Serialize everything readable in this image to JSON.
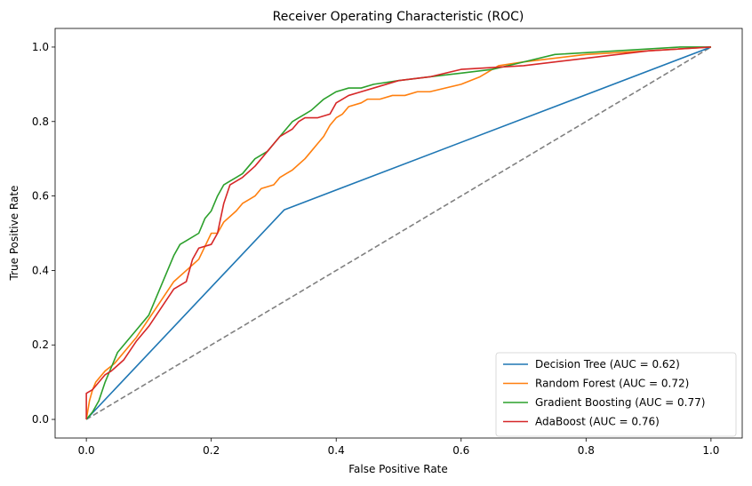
{
  "chart_data": {
    "type": "line",
    "title": "Receiver Operating Characteristic (ROC)",
    "xlabel": "False Positive Rate",
    "ylabel": "True Positive Rate",
    "xlim": [
      -0.05,
      1.05
    ],
    "ylim": [
      -0.05,
      1.05
    ],
    "xticks": [
      0.0,
      0.2,
      0.4,
      0.6,
      0.8,
      1.0
    ],
    "yticks": [
      0.0,
      0.2,
      0.4,
      0.6,
      0.8,
      1.0
    ],
    "xtick_labels": [
      "0.0",
      "0.2",
      "0.4",
      "0.6",
      "0.8",
      "1.0"
    ],
    "ytick_labels": [
      "0.0",
      "0.2",
      "0.4",
      "0.6",
      "0.8",
      "1.0"
    ],
    "grid": false,
    "legend_position": "lower-right",
    "reference_line": {
      "x": [
        0,
        1
      ],
      "y": [
        0,
        1
      ],
      "color": "#808080",
      "style": "dashed"
    },
    "series": [
      {
        "name": "Decision Tree (AUC = 0.62)",
        "color": "#1f77b4",
        "x": [
          0.0,
          0.317,
          1.0
        ],
        "y": [
          0.0,
          0.563,
          1.0
        ]
      },
      {
        "name": "Random Forest (AUC = 0.72)",
        "color": "#ff7f0e",
        "x": [
          0.0,
          0.005,
          0.01,
          0.015,
          0.02,
          0.03,
          0.045,
          0.06,
          0.08,
          0.1,
          0.12,
          0.14,
          0.16,
          0.18,
          0.2,
          0.21,
          0.22,
          0.24,
          0.25,
          0.26,
          0.27,
          0.28,
          0.3,
          0.31,
          0.32,
          0.33,
          0.35,
          0.36,
          0.37,
          0.38,
          0.39,
          0.4,
          0.41,
          0.42,
          0.44,
          0.45,
          0.47,
          0.49,
          0.51,
          0.53,
          0.55,
          0.6,
          0.63,
          0.64,
          0.65,
          0.66,
          0.7,
          0.8,
          0.9,
          1.0
        ],
        "y": [
          0.0,
          0.05,
          0.08,
          0.1,
          0.11,
          0.13,
          0.15,
          0.18,
          0.22,
          0.27,
          0.32,
          0.37,
          0.4,
          0.43,
          0.5,
          0.5,
          0.53,
          0.56,
          0.58,
          0.59,
          0.6,
          0.62,
          0.63,
          0.65,
          0.66,
          0.67,
          0.7,
          0.72,
          0.74,
          0.76,
          0.79,
          0.81,
          0.82,
          0.84,
          0.85,
          0.86,
          0.86,
          0.87,
          0.87,
          0.88,
          0.88,
          0.9,
          0.92,
          0.93,
          0.94,
          0.95,
          0.96,
          0.98,
          0.99,
          1.0
        ]
      },
      {
        "name": "Gradient Boosting (AUC = 0.77)",
        "color": "#2ca02c",
        "x": [
          0.0,
          0.01,
          0.02,
          0.03,
          0.04,
          0.05,
          0.06,
          0.08,
          0.1,
          0.11,
          0.12,
          0.13,
          0.14,
          0.15,
          0.16,
          0.18,
          0.19,
          0.2,
          0.21,
          0.22,
          0.23,
          0.24,
          0.25,
          0.27,
          0.29,
          0.3,
          0.31,
          0.32,
          0.33,
          0.34,
          0.35,
          0.36,
          0.38,
          0.4,
          0.42,
          0.44,
          0.46,
          0.5,
          0.55,
          0.6,
          0.65,
          0.7,
          0.75,
          0.85,
          0.95,
          1.0
        ],
        "y": [
          0.0,
          0.02,
          0.05,
          0.1,
          0.14,
          0.18,
          0.2,
          0.24,
          0.28,
          0.32,
          0.36,
          0.4,
          0.44,
          0.47,
          0.48,
          0.5,
          0.54,
          0.56,
          0.6,
          0.63,
          0.64,
          0.65,
          0.66,
          0.7,
          0.72,
          0.74,
          0.76,
          0.78,
          0.8,
          0.81,
          0.82,
          0.83,
          0.86,
          0.88,
          0.89,
          0.89,
          0.9,
          0.91,
          0.92,
          0.93,
          0.94,
          0.96,
          0.98,
          0.99,
          1.0,
          1.0
        ]
      },
      {
        "name": "AdaBoost (AUC = 0.76)",
        "color": "#d62728",
        "x": [
          0.0,
          0.0,
          0.01,
          0.02,
          0.03,
          0.04,
          0.06,
          0.08,
          0.1,
          0.12,
          0.14,
          0.16,
          0.17,
          0.18,
          0.2,
          0.21,
          0.22,
          0.23,
          0.25,
          0.27,
          0.28,
          0.29,
          0.3,
          0.31,
          0.33,
          0.34,
          0.35,
          0.37,
          0.39,
          0.4,
          0.42,
          0.44,
          0.46,
          0.5,
          0.55,
          0.6,
          0.7,
          0.8,
          0.9,
          1.0
        ],
        "y": [
          0.0,
          0.07,
          0.08,
          0.1,
          0.12,
          0.13,
          0.16,
          0.21,
          0.25,
          0.3,
          0.35,
          0.37,
          0.43,
          0.46,
          0.47,
          0.5,
          0.58,
          0.63,
          0.65,
          0.68,
          0.7,
          0.72,
          0.74,
          0.76,
          0.78,
          0.8,
          0.81,
          0.81,
          0.82,
          0.85,
          0.87,
          0.88,
          0.89,
          0.91,
          0.92,
          0.94,
          0.95,
          0.97,
          0.99,
          1.0
        ]
      }
    ]
  }
}
